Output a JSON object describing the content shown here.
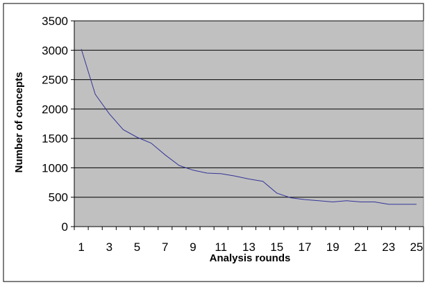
{
  "chart_data": {
    "type": "line",
    "title": "",
    "xlabel": "Analysis rounds",
    "ylabel": "Number of concepts",
    "x": [
      1,
      2,
      3,
      4,
      5,
      6,
      7,
      8,
      9,
      10,
      11,
      12,
      13,
      14,
      15,
      16,
      17,
      18,
      19,
      20,
      21,
      22,
      23,
      24,
      25
    ],
    "x_tick_labels": [
      "1",
      "3",
      "5",
      "7",
      "9",
      "11",
      "13",
      "15",
      "17",
      "19",
      "21",
      "23",
      "25"
    ],
    "ylim": [
      0,
      3500
    ],
    "y_ticks": [
      0,
      500,
      1000,
      1500,
      2000,
      2500,
      3000,
      3500
    ],
    "grid": true,
    "plot_background": "#c0c0c0",
    "series": [
      {
        "color": "#333399",
        "values": [
          3020,
          2250,
          1920,
          1650,
          1520,
          1420,
          1220,
          1040,
          960,
          910,
          900,
          860,
          810,
          770,
          570,
          490,
          460,
          440,
          420,
          440,
          420,
          420,
          380,
          380,
          380
        ]
      }
    ]
  }
}
